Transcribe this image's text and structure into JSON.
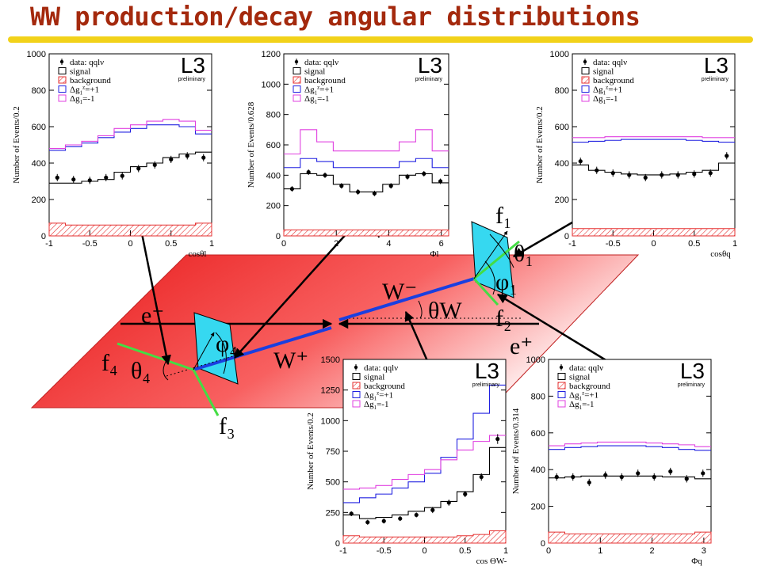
{
  "header": {
    "title": "WW production/decay angular distributions"
  },
  "colors": {
    "data": "#000000",
    "signal": "#000000",
    "background": "#e53030",
    "plus": "#2020e0",
    "minus": "#e040e0",
    "plane": "#f04040",
    "detector": "#36d8f0",
    "wline": "#1a3fe0",
    "fermion": "#44dd44"
  },
  "legend": {
    "data": "data: qqlν",
    "signal": "signal",
    "background": "background",
    "plus_pre": "Δg",
    "plus_post": "=+1",
    "minus_pre": "Δg",
    "minus_post": "=-1",
    "sup": "z",
    "sub": "1"
  },
  "experiment": {
    "name": "L3",
    "status": "preliminary"
  },
  "diagram": {
    "labels": [
      "e⁻",
      "e⁺",
      "W⁻",
      "W⁺",
      "θW",
      "f₁",
      "f₂",
      "f₃",
      "f₄",
      "θ₁",
      "φ₁",
      "θ₄",
      "φ₄"
    ]
  },
  "chart_data": [
    {
      "type": "bar",
      "ylabel": "Number of Events/0.2",
      "xlabel": "cosθl",
      "xlim": [
        -1,
        1
      ],
      "ylim": [
        0,
        1000
      ],
      "xticks": [
        -1,
        -0.5,
        0,
        0.5,
        1
      ],
      "xtick_labels": [
        "-1",
        "-0.5",
        "0",
        "0.5",
        "1"
      ],
      "yticks": [
        0,
        200,
        400,
        600,
        800,
        1000
      ],
      "edges": [
        -1,
        -0.8,
        -0.6,
        -0.4,
        -0.2,
        0,
        0.2,
        0.4,
        0.6,
        0.8,
        1
      ],
      "series": [
        {
          "name": "signal",
          "values": [
            290,
            290,
            300,
            310,
            350,
            380,
            400,
            430,
            450,
            460
          ]
        },
        {
          "name": "background",
          "values": [
            70,
            60,
            60,
            60,
            60,
            60,
            60,
            60,
            60,
            70
          ]
        },
        {
          "name": "Δg=+1",
          "values": [
            470,
            490,
            510,
            540,
            570,
            590,
            610,
            610,
            600,
            560
          ]
        },
        {
          "name": "Δg=-1",
          "values": [
            480,
            500,
            520,
            550,
            590,
            610,
            630,
            640,
            630,
            580
          ]
        }
      ],
      "data": {
        "x": [
          -0.9,
          -0.7,
          -0.5,
          -0.3,
          -0.1,
          0.1,
          0.3,
          0.5,
          0.7,
          0.9
        ],
        "y": [
          320,
          310,
          305,
          320,
          330,
          370,
          390,
          420,
          440,
          430
        ],
        "err": [
          20,
          20,
          20,
          20,
          20,
          20,
          20,
          20,
          20,
          20
        ]
      }
    },
    {
      "type": "bar",
      "ylabel": "Number of Events/0.628",
      "xlabel": "Φl",
      "xlim": [
        0,
        6.28
      ],
      "ylim": [
        0,
        1200
      ],
      "xticks": [
        0,
        2,
        4,
        6
      ],
      "xtick_labels": [
        "0",
        "2",
        "4",
        "6"
      ],
      "yticks": [
        0,
        200,
        400,
        600,
        800,
        1000,
        1200
      ],
      "edges": [
        0,
        0.628,
        1.256,
        1.884,
        2.512,
        3.14,
        3.768,
        4.396,
        5.024,
        5.652,
        6.28
      ],
      "series": [
        {
          "name": "signal",
          "values": [
            310,
            410,
            400,
            340,
            290,
            290,
            340,
            400,
            410,
            350
          ]
        },
        {
          "name": "background",
          "values": [
            40,
            40,
            40,
            40,
            40,
            40,
            40,
            40,
            40,
            40
          ]
        },
        {
          "name": "Δg=+1",
          "values": [
            450,
            510,
            490,
            450,
            450,
            450,
            450,
            490,
            510,
            450
          ]
        },
        {
          "name": "Δg=-1",
          "values": [
            540,
            700,
            620,
            560,
            560,
            560,
            560,
            620,
            700,
            560
          ]
        }
      ],
      "data": {
        "x": [
          0.314,
          0.942,
          1.57,
          2.198,
          2.826,
          3.454,
          4.082,
          4.71,
          5.338,
          5.966
        ],
        "y": [
          310,
          420,
          400,
          330,
          290,
          280,
          330,
          390,
          410,
          360
        ],
        "err": [
          18,
          18,
          18,
          18,
          18,
          18,
          18,
          18,
          18,
          18
        ]
      }
    },
    {
      "type": "bar",
      "ylabel": "Number of Events/0.2",
      "xlabel": "cosθq",
      "xlim": [
        -1,
        1
      ],
      "ylim": [
        0,
        1000
      ],
      "xticks": [
        -1,
        -0.5,
        0,
        0.5,
        1
      ],
      "xtick_labels": [
        "-1",
        "-0.5",
        "0",
        "0.5",
        "1"
      ],
      "yticks": [
        0,
        200,
        400,
        600,
        800,
        1000
      ],
      "edges": [
        -1,
        -0.8,
        -0.6,
        -0.4,
        -0.2,
        0,
        0.2,
        0.4,
        0.6,
        0.8,
        1
      ],
      "series": [
        {
          "name": "signal",
          "values": [
            390,
            360,
            350,
            340,
            335,
            335,
            340,
            350,
            360,
            400
          ]
        },
        {
          "name": "background",
          "values": [
            40,
            40,
            40,
            40,
            40,
            40,
            40,
            40,
            40,
            40
          ]
        },
        {
          "name": "Δg=+1",
          "values": [
            515,
            520,
            525,
            530,
            530,
            530,
            530,
            525,
            520,
            515
          ]
        },
        {
          "name": "Δg=-1",
          "values": [
            540,
            540,
            545,
            545,
            545,
            545,
            545,
            545,
            540,
            540
          ]
        }
      ],
      "data": {
        "x": [
          -0.9,
          -0.7,
          -0.5,
          -0.3,
          -0.1,
          0.1,
          0.3,
          0.5,
          0.7,
          0.9
        ],
        "y": [
          410,
          360,
          345,
          335,
          320,
          335,
          335,
          340,
          345,
          440
        ],
        "err": [
          20,
          20,
          20,
          20,
          20,
          20,
          20,
          20,
          20,
          20
        ]
      }
    },
    {
      "type": "bar",
      "ylabel": "Number of Events/0.2",
      "xlabel": "cos ΘW-",
      "xlim": [
        -1,
        1
      ],
      "ylim": [
        0,
        1500
      ],
      "xticks": [
        -1,
        -0.5,
        0,
        0.5,
        1
      ],
      "xtick_labels": [
        "-1",
        "-0.5",
        "0",
        "0.5",
        "1"
      ],
      "yticks": [
        0,
        250,
        500,
        750,
        1000,
        1250,
        1500
      ],
      "edges": [
        -1,
        -0.8,
        -0.6,
        -0.4,
        -0.2,
        0,
        0.2,
        0.4,
        0.6,
        0.8,
        1
      ],
      "series": [
        {
          "name": "signal",
          "values": [
            230,
            200,
            210,
            230,
            260,
            290,
            340,
            420,
            560,
            780
          ]
        },
        {
          "name": "background",
          "values": [
            60,
            50,
            50,
            50,
            50,
            50,
            50,
            60,
            70,
            100
          ]
        },
        {
          "name": "Δg=+1",
          "values": [
            330,
            370,
            400,
            450,
            500,
            570,
            700,
            850,
            1060,
            1290
          ]
        },
        {
          "name": "Δg=-1",
          "values": [
            440,
            450,
            470,
            520,
            560,
            600,
            680,
            760,
            830,
            880
          ]
        }
      ],
      "data": {
        "x": [
          -0.9,
          -0.7,
          -0.5,
          -0.3,
          -0.1,
          0.1,
          0.3,
          0.5,
          0.7,
          0.9
        ],
        "y": [
          240,
          170,
          180,
          200,
          230,
          270,
          330,
          400,
          540,
          850
        ],
        "err": [
          20,
          20,
          20,
          20,
          20,
          25,
          25,
          25,
          30,
          40
        ]
      }
    },
    {
      "type": "bar",
      "ylabel": "Number of Events/0.314",
      "xlabel": "Φq",
      "xlim": [
        0,
        3.14
      ],
      "ylim": [
        0,
        1000
      ],
      "xticks": [
        0,
        1,
        2,
        3
      ],
      "xtick_labels": [
        "0",
        "1",
        "2",
        "3"
      ],
      "yticks": [
        0,
        200,
        400,
        600,
        800,
        1000
      ],
      "edges": [
        0,
        0.314,
        0.628,
        0.942,
        1.256,
        1.57,
        1.884,
        2.198,
        2.512,
        2.826,
        3.14
      ],
      "series": [
        {
          "name": "signal",
          "values": [
            355,
            360,
            365,
            365,
            365,
            365,
            365,
            360,
            360,
            350
          ]
        },
        {
          "name": "background",
          "values": [
            60,
            50,
            50,
            50,
            50,
            50,
            50,
            50,
            50,
            60
          ]
        },
        {
          "name": "Δg=+1",
          "values": [
            510,
            520,
            525,
            530,
            530,
            530,
            525,
            520,
            510,
            505
          ]
        },
        {
          "name": "Δg=-1",
          "values": [
            530,
            540,
            545,
            550,
            550,
            550,
            545,
            540,
            535,
            525
          ]
        }
      ],
      "data": {
        "x": [
          0.157,
          0.471,
          0.785,
          1.099,
          1.413,
          1.727,
          2.041,
          2.355,
          2.669,
          2.983
        ],
        "y": [
          360,
          360,
          330,
          370,
          360,
          380,
          360,
          390,
          350,
          380
        ],
        "err": [
          20,
          20,
          20,
          20,
          20,
          20,
          20,
          20,
          20,
          20
        ]
      }
    }
  ]
}
